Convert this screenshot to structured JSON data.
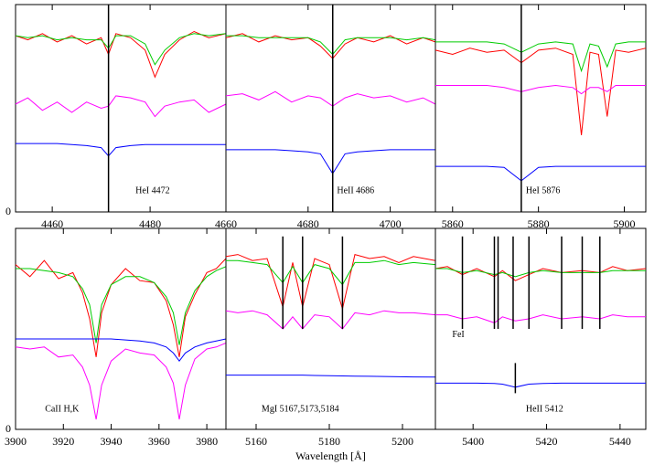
{
  "chart_data": [
    {
      "type": "line",
      "annotation": "HeI 4472",
      "xlim": [
        4452.5,
        4495.5
      ],
      "xticks": [
        4460,
        4480
      ],
      "ylim": [
        0,
        10
      ],
      "yticks": [
        0
      ],
      "lines": [
        4471.5
      ],
      "x": [
        4452.5,
        4455,
        4458,
        4461,
        4464,
        4467,
        4470,
        4471.5,
        4473,
        4476,
        4479,
        4481,
        4483,
        4486,
        4489,
        4492,
        4495.5
      ],
      "series": [
        {
          "color": "#ff0000",
          "values": [
            8.5,
            8.3,
            8.6,
            8.2,
            8.5,
            8.1,
            8.4,
            7.6,
            8.6,
            8.4,
            7.8,
            6.5,
            7.6,
            8.3,
            8.7,
            8.4,
            8.6
          ]
        },
        {
          "color": "#00cc00",
          "values": [
            8.5,
            8.4,
            8.5,
            8.3,
            8.4,
            8.3,
            8.3,
            7.9,
            8.5,
            8.5,
            8.1,
            7.1,
            7.8,
            8.4,
            8.6,
            8.5,
            8.6
          ]
        },
        {
          "color": "#ff00ff",
          "values": [
            5.2,
            5.5,
            4.9,
            5.3,
            4.8,
            5.3,
            5.0,
            5.1,
            5.6,
            5.5,
            5.3,
            4.6,
            5.1,
            5.3,
            5.4,
            4.8,
            5.2
          ]
        },
        {
          "color": "#0000ff",
          "values": [
            3.3,
            3.3,
            3.3,
            3.3,
            3.25,
            3.2,
            3.1,
            2.7,
            3.1,
            3.2,
            3.25,
            3.25,
            3.25,
            3.25,
            3.25,
            3.25,
            3.25
          ]
        }
      ]
    },
    {
      "type": "line",
      "annotation": "HeII 4686",
      "xlim": [
        4660,
        4711
      ],
      "xticks": [
        4660,
        4680,
        4700
      ],
      "ylim": [
        0,
        10
      ],
      "lines": [
        4686
      ],
      "x": [
        4660,
        4664,
        4668,
        4672,
        4676,
        4680,
        4683,
        4686,
        4689,
        4692,
        4696,
        4700,
        4704,
        4708,
        4711
      ],
      "series": [
        {
          "color": "#ff0000",
          "values": [
            8.4,
            8.6,
            8.2,
            8.5,
            8.3,
            8.4,
            8.0,
            7.4,
            8.1,
            8.4,
            8.2,
            8.5,
            8.1,
            8.4,
            8.2
          ]
        },
        {
          "color": "#00cc00",
          "values": [
            8.5,
            8.5,
            8.4,
            8.4,
            8.4,
            8.4,
            8.2,
            7.6,
            8.3,
            8.4,
            8.4,
            8.4,
            8.3,
            8.4,
            8.3
          ]
        },
        {
          "color": "#ff00ff",
          "values": [
            5.6,
            5.7,
            5.4,
            5.8,
            5.3,
            5.6,
            5.5,
            5.1,
            5.5,
            5.7,
            5.5,
            5.6,
            5.3,
            5.5,
            5.2
          ]
        },
        {
          "color": "#0000ff",
          "values": [
            3.0,
            3.0,
            3.0,
            3.0,
            2.95,
            2.9,
            2.8,
            1.85,
            2.8,
            2.9,
            2.95,
            3.0,
            3.0,
            3.0,
            3.0
          ]
        }
      ]
    },
    {
      "type": "line",
      "annotation": "HeI 5876",
      "xlim": [
        5856,
        5905
      ],
      "xticks": [
        5860,
        5880,
        5900
      ],
      "ylim": [
        0,
        10
      ],
      "lines": [
        5876
      ],
      "x": [
        5856,
        5860,
        5864,
        5868,
        5872,
        5876,
        5880,
        5884,
        5888,
        5890,
        5892,
        5894,
        5896,
        5898,
        5901,
        5905
      ],
      "series": [
        {
          "color": "#ff0000",
          "values": [
            7.8,
            7.6,
            7.9,
            7.7,
            7.8,
            7.2,
            7.8,
            7.9,
            7.6,
            3.7,
            7.7,
            7.6,
            4.6,
            7.8,
            7.7,
            7.9
          ]
        },
        {
          "color": "#00cc00",
          "values": [
            8.2,
            8.2,
            8.2,
            8.2,
            8.1,
            7.7,
            8.1,
            8.2,
            8.1,
            6.8,
            8.1,
            8.0,
            7.0,
            8.1,
            8.2,
            8.2
          ]
        },
        {
          "color": "#ff00ff",
          "values": [
            6.1,
            6.1,
            6.1,
            6.1,
            6.0,
            5.8,
            6.0,
            6.1,
            6.0,
            5.7,
            6.0,
            6.0,
            5.8,
            6.1,
            6.1,
            6.1
          ]
        },
        {
          "color": "#0000ff",
          "values": [
            2.2,
            2.2,
            2.2,
            2.2,
            2.15,
            1.5,
            2.15,
            2.2,
            2.2,
            2.2,
            2.2,
            2.2,
            2.2,
            2.2,
            2.2,
            2.2
          ]
        }
      ]
    },
    {
      "type": "line",
      "annotation": "CaII H,K",
      "xlim": [
        3900,
        3988
      ],
      "xticks": [
        3900,
        3920,
        3940,
        3960,
        3980
      ],
      "ylim": [
        0,
        10
      ],
      "yticks": [
        0
      ],
      "lines": [],
      "x": [
        3900,
        3906,
        3912,
        3918,
        3924,
        3928,
        3931,
        3933.7,
        3936,
        3940,
        3946,
        3952,
        3958,
        3963,
        3966,
        3968.5,
        3971,
        3975,
        3980,
        3984,
        3988
      ],
      "series": [
        {
          "color": "#ff0000",
          "values": [
            8.2,
            7.6,
            8.4,
            7.5,
            7.8,
            6.8,
            5.5,
            3.6,
            5.8,
            7.2,
            8.0,
            7.4,
            7.3,
            6.4,
            5.2,
            3.6,
            5.6,
            6.7,
            7.8,
            8.0,
            8.5
          ]
        },
        {
          "color": "#00cc00",
          "values": [
            8.0,
            8.0,
            7.9,
            7.8,
            7.6,
            7.0,
            6.2,
            4.3,
            6.2,
            7.2,
            7.6,
            7.6,
            7.3,
            6.6,
            5.8,
            4.2,
            5.8,
            6.9,
            7.6,
            7.9,
            8.1
          ]
        },
        {
          "color": "#ff00ff",
          "values": [
            4.1,
            4.0,
            4.1,
            3.6,
            3.7,
            3.1,
            2.2,
            0.5,
            2.2,
            3.4,
            4.0,
            3.8,
            3.7,
            3.1,
            2.3,
            0.5,
            2.2,
            3.5,
            4.0,
            4.1,
            4.3
          ]
        },
        {
          "color": "#0000ff",
          "values": [
            4.5,
            4.5,
            4.5,
            4.5,
            4.5,
            4.5,
            4.5,
            4.5,
            4.5,
            4.5,
            4.45,
            4.4,
            4.3,
            4.1,
            3.8,
            3.4,
            3.8,
            4.1,
            4.3,
            4.4,
            4.5
          ]
        }
      ]
    },
    {
      "type": "line",
      "annotation": "MgI 5167,5173,5184",
      "xlim": [
        5151.75,
        5209
      ],
      "xticks": [
        5160,
        5180,
        5200
      ],
      "ylim": [
        0,
        10
      ],
      "lines": [
        5167.3,
        5172.7,
        5183.6
      ],
      "xlabel": "Wavelength [Å]",
      "x": [
        5151.75,
        5155,
        5159,
        5163,
        5167.3,
        5170,
        5172.7,
        5176,
        5180,
        5183.6,
        5187,
        5191,
        5195,
        5199,
        5203,
        5209
      ],
      "series": [
        {
          "color": "#ff0000",
          "values": [
            8.6,
            8.7,
            8.4,
            8.5,
            6.1,
            8.3,
            6.1,
            8.5,
            8.2,
            6.0,
            8.7,
            8.5,
            8.6,
            8.3,
            8.6,
            8.4
          ]
        },
        {
          "color": "#00cc00",
          "values": [
            8.4,
            8.4,
            8.3,
            8.2,
            7.3,
            8.1,
            7.3,
            8.2,
            8.0,
            7.2,
            8.3,
            8.3,
            8.4,
            8.2,
            8.3,
            8.2
          ]
        },
        {
          "color": "#ff00ff",
          "values": [
            5.9,
            5.8,
            5.9,
            5.7,
            5.0,
            5.6,
            5.0,
            5.7,
            5.6,
            5.0,
            5.8,
            5.7,
            5.9,
            5.8,
            5.8,
            5.7
          ]
        },
        {
          "color": "#0000ff",
          "values": [
            2.7,
            2.7,
            2.7,
            2.7,
            2.7,
            2.7,
            2.7,
            2.68,
            2.67,
            2.66,
            2.65,
            2.64,
            2.63,
            2.62,
            2.61,
            2.6
          ]
        }
      ]
    },
    {
      "type": "line",
      "annotation": "HeII 5412",
      "annotation2": "FeI",
      "xlim": [
        5389.75,
        5447
      ],
      "xticks": [
        5400,
        5420,
        5440
      ],
      "ylim": [
        0,
        10
      ],
      "lines": [
        5397.1,
        5405.8,
        5406.8,
        5410.9,
        5415.2,
        5424.1,
        5429.7,
        5434.5
      ],
      "marker": 5411.5,
      "x": [
        5389.75,
        5393,
        5397.1,
        5401,
        5405.8,
        5408,
        5411.5,
        5415.2,
        5419,
        5424.1,
        5429.7,
        5434.5,
        5438,
        5442,
        5447
      ],
      "series": [
        {
          "color": "#ff0000",
          "values": [
            8.0,
            8.1,
            7.7,
            8.0,
            7.6,
            7.9,
            7.4,
            7.7,
            8.0,
            7.8,
            7.9,
            7.8,
            8.1,
            7.9,
            8.0
          ]
        },
        {
          "color": "#00cc00",
          "values": [
            8.0,
            8.0,
            7.8,
            7.9,
            7.7,
            7.8,
            7.6,
            7.8,
            7.9,
            7.8,
            7.8,
            7.8,
            7.9,
            7.9,
            7.9
          ]
        },
        {
          "color": "#ff00ff",
          "values": [
            5.7,
            5.7,
            5.5,
            5.6,
            5.3,
            5.6,
            5.4,
            5.5,
            5.7,
            5.5,
            5.6,
            5.5,
            5.7,
            5.6,
            5.6
          ]
        },
        {
          "color": "#0000ff",
          "values": [
            2.3,
            2.3,
            2.3,
            2.3,
            2.28,
            2.25,
            2.1,
            2.25,
            2.28,
            2.3,
            2.3,
            2.3,
            2.3,
            2.3,
            2.3
          ]
        }
      ]
    }
  ]
}
